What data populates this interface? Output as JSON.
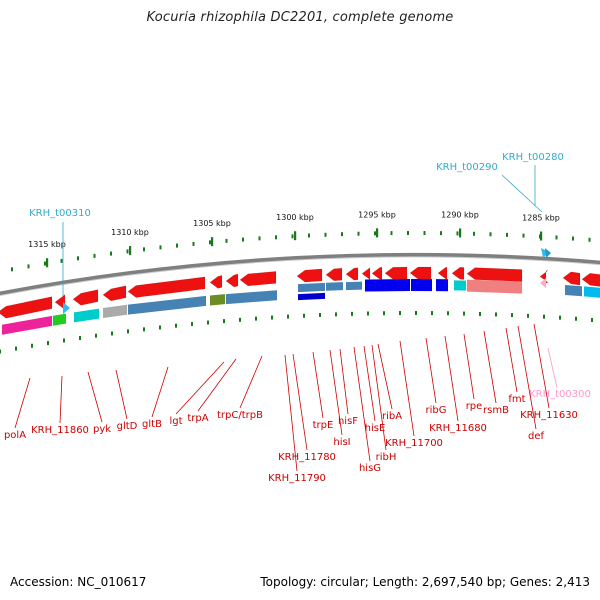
{
  "title": "Kocuria rhizophila DC2201, complete genome",
  "footer": {
    "accession": "Accession: NC_010617",
    "summary": "Topology: circular; Length: 2,697,540 bp; Genes: 2,413"
  },
  "colors": {
    "backbone": "#888888",
    "tick": "#1a7a1a",
    "feature_label": "#cc0000",
    "trna_label": "#33aacc",
    "pseudo_label": "#ff99cc"
  },
  "ruler": [
    {
      "kbp": 1315,
      "label": "1315 kbp"
    },
    {
      "kbp": 1310,
      "label": "1310 kbp"
    },
    {
      "kbp": 1305,
      "label": "1305 kbp"
    },
    {
      "kbp": 1300,
      "label": "1300 kbp"
    },
    {
      "kbp": 1295,
      "label": "1295 kbp"
    },
    {
      "kbp": 1290,
      "label": "1290 kbp"
    },
    {
      "kbp": 1285,
      "label": "1285 kbp"
    }
  ],
  "trna_labels": [
    "KRH_t00310",
    "KRH_t00290",
    "KRH_t00280"
  ],
  "pseudo_labels": [
    "KRH_t00300"
  ],
  "gene_labels": [
    "polA",
    "KRH_11860",
    "pyk",
    "gltD",
    "gltB",
    "lgt",
    "trpA",
    "trpC/trpB",
    "KRH_11790",
    "KRH_11780",
    "trpE",
    "hisI",
    "hisF",
    "hisG",
    "hisE",
    "ribH",
    "ribA",
    "KRH_11700",
    "ribG",
    "KRH_11680",
    "rpe",
    "rsmB",
    "fmt",
    "def",
    "KRH_11630"
  ]
}
